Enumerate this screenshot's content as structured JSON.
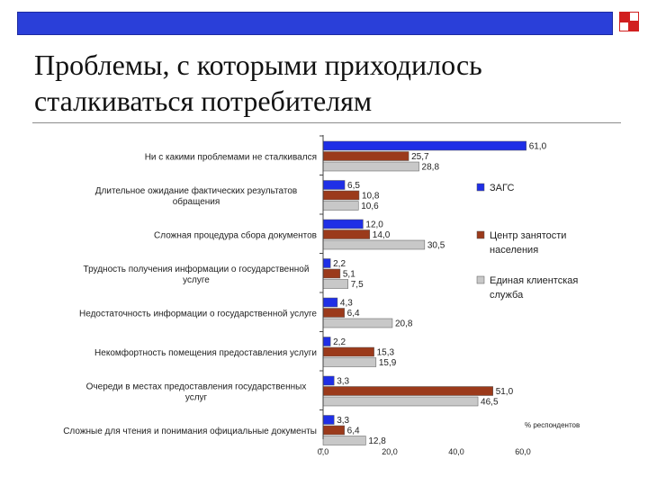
{
  "slide": {
    "title_line1": "Проблемы, с которыми приходилось",
    "title_line2": "сталкиваться потребителям"
  },
  "colors": {
    "top_bar": "#2a3fd9",
    "corner_accent": "#d11f1f",
    "series": [
      "#1f2fe6",
      "#9b3a1b",
      "#c8c8c8"
    ]
  },
  "chart_data": {
    "type": "bar",
    "orientation": "horizontal",
    "categories": [
      "Ни с какими проблемами не сталкивался",
      "Длительное ожидание фактических результатов обращения",
      "Сложная процедура сбора документов",
      "Трудность получения информации о государственной услуге",
      "Недостаточность информации о государственной услуге",
      "Некомфортность помещения предоставления услуги",
      "Очереди в местах предоставления государственных услуг",
      "Сложные для чтения и понимания официальные документы"
    ],
    "series": [
      {
        "name": "ЗАГС",
        "values": [
          61.0,
          6.5,
          12.0,
          2.2,
          4.3,
          2.2,
          3.3,
          3.3
        ]
      },
      {
        "name": "Центр занятости населения",
        "values": [
          25.7,
          10.8,
          14.0,
          5.1,
          6.4,
          15.3,
          51.0,
          6.4
        ]
      },
      {
        "name": "Единая клиентская служба",
        "values": [
          28.8,
          10.6,
          30.5,
          7.5,
          20.8,
          15.9,
          46.5,
          12.8
        ]
      }
    ],
    "value_labels": [
      [
        "61,0",
        "6,5",
        "12,0",
        "2,2",
        "4,3",
        "2,2",
        "3,3",
        "3,3"
      ],
      [
        "25,7",
        "10,8",
        "14,0",
        "5,1",
        "6,4",
        "15,3",
        "51,0",
        "6,4"
      ],
      [
        "28,8",
        "10,6",
        "30,5",
        "7,5",
        "20,8",
        "15,9",
        "46,5",
        "12,8"
      ]
    ],
    "xlim": [
      0,
      60
    ],
    "x_ticks": [
      0,
      20,
      40,
      60
    ],
    "x_tick_labels": [
      "0,0",
      "20,0",
      "40,0",
      "60,0"
    ],
    "unit_label": "% респондентов",
    "legend_position": "right",
    "grid": false
  }
}
